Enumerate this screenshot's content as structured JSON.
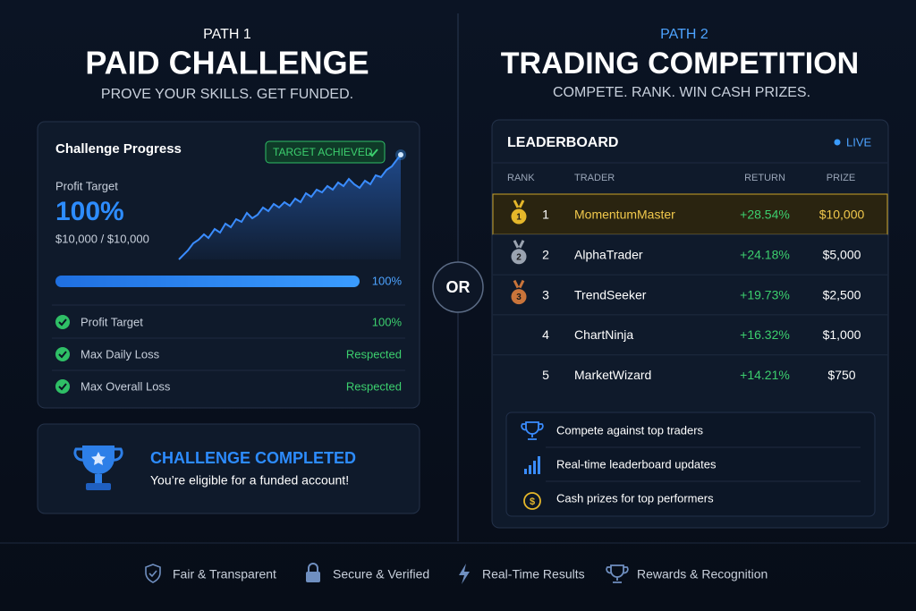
{
  "path1": {
    "kicker": "PATH 1",
    "title": "PAID CHALLENGE",
    "subtitle": "PROVE YOUR SKILLS. GET FUNDED.",
    "progress_card": {
      "title": "Challenge Progress",
      "badge": "TARGET ACHIEVED",
      "metric_label": "Profit Target",
      "metric_value": "100%",
      "metric_detail": "$10,000 / $10,000",
      "bar_label": "100%",
      "checks": [
        {
          "label": "Profit Target",
          "status": "100%"
        },
        {
          "label": "Max Daily Loss",
          "status": "Respected"
        },
        {
          "label": "Max Overall Loss",
          "status": "Respected"
        }
      ]
    },
    "completed_card": {
      "title": "CHALLENGE COMPLETED",
      "text": "You’re eligible for a funded account!"
    }
  },
  "divider": "OR",
  "path2": {
    "kicker": "PATH 2",
    "title": "TRADING COMPETITION",
    "subtitle": "COMPETE. RANK. WIN CASH PRIZES.",
    "leaderboard": {
      "title": "LEADERBOARD",
      "status": "LIVE",
      "columns": [
        "RANK",
        "TRADER",
        "RETURN",
        "PRIZE"
      ],
      "rows": [
        [
          "1",
          "MomentumMaster",
          "+28.54%",
          "$10,000"
        ],
        [
          "2",
          "AlphaTrader",
          "+24.18%",
          "$5,000"
        ],
        [
          "3",
          "TrendSeeker",
          "+19.73%",
          "$2,500"
        ],
        [
          "4",
          "ChartNinja",
          "+16.32%",
          "$1,000"
        ],
        [
          "5",
          "MarketWizard",
          "+14.21%",
          "$750"
        ]
      ]
    },
    "features": [
      "Compete against top traders",
      "Real-time leaderboard updates",
      "Cash prizes for top performers"
    ]
  },
  "footer": [
    "Fair & Transparent",
    "Secure & Verified",
    "Real-Time Results",
    "Rewards & Recognition"
  ]
}
